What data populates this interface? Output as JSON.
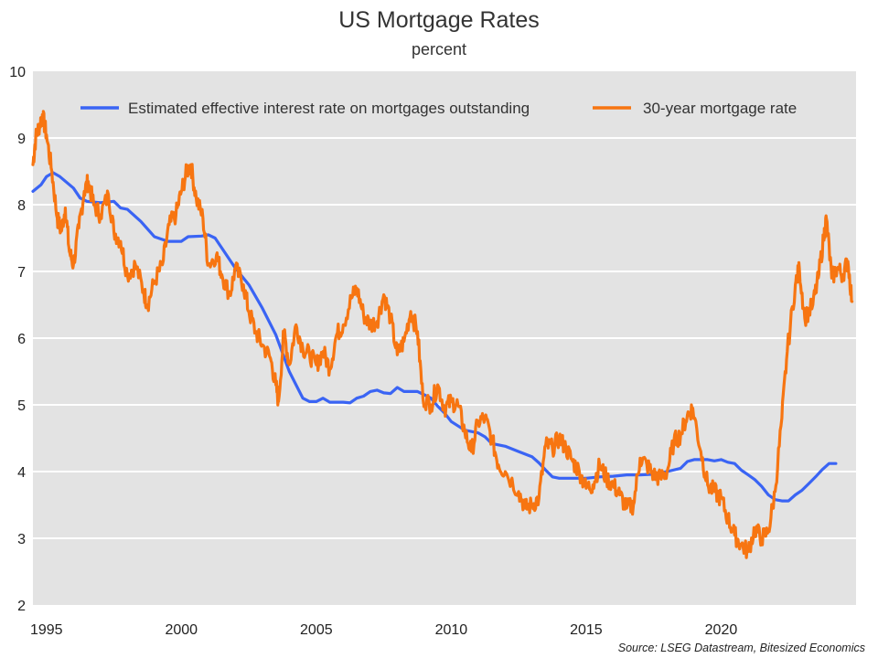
{
  "chart_data": {
    "type": "line",
    "title": "US Mortgage Rates",
    "subtitle": "percent",
    "source": "Source: LSEG Datastream, Bitesized Economics",
    "xlabel": "",
    "ylabel": "",
    "xlim": [
      1994.5,
      2025.0
    ],
    "ylim": [
      2,
      10
    ],
    "x_ticks": [
      1995,
      2000,
      2005,
      2010,
      2015,
      2020
    ],
    "y_ticks": [
      2,
      3,
      4,
      5,
      6,
      7,
      8,
      9,
      10
    ],
    "grid": "horizontal",
    "legend_position": "top",
    "colors": {
      "plot_background": "#e3e3e3",
      "gridline": "#ffffff",
      "effective_rate": "#3a64f4",
      "mortgage_30y": "#f77511"
    },
    "series": [
      {
        "name": "Estimated effective interest rate on mortgages outstanding",
        "color": "#3a64f4",
        "points": [
          [
            1994.5,
            8.2
          ],
          [
            1994.8,
            8.3
          ],
          [
            1995.0,
            8.42
          ],
          [
            1995.25,
            8.48
          ],
          [
            1995.5,
            8.42
          ],
          [
            1996.0,
            8.25
          ],
          [
            1996.25,
            8.1
          ],
          [
            1996.5,
            8.05
          ],
          [
            1997.0,
            8.03
          ],
          [
            1997.5,
            8.05
          ],
          [
            1997.75,
            7.95
          ],
          [
            1998.0,
            7.93
          ],
          [
            1998.5,
            7.75
          ],
          [
            1999.0,
            7.52
          ],
          [
            1999.5,
            7.45
          ],
          [
            2000.0,
            7.45
          ],
          [
            2000.25,
            7.52
          ],
          [
            2000.75,
            7.53
          ],
          [
            2001.0,
            7.55
          ],
          [
            2001.25,
            7.5
          ],
          [
            2001.5,
            7.35
          ],
          [
            2002.0,
            7.05
          ],
          [
            2002.5,
            6.8
          ],
          [
            2003.0,
            6.45
          ],
          [
            2003.5,
            6.05
          ],
          [
            2004.0,
            5.5
          ],
          [
            2004.25,
            5.3
          ],
          [
            2004.5,
            5.1
          ],
          [
            2004.75,
            5.05
          ],
          [
            2005.0,
            5.05
          ],
          [
            2005.25,
            5.1
          ],
          [
            2005.5,
            5.04
          ],
          [
            2006.0,
            5.04
          ],
          [
            2006.25,
            5.03
          ],
          [
            2006.5,
            5.1
          ],
          [
            2006.75,
            5.13
          ],
          [
            2007.0,
            5.2
          ],
          [
            2007.25,
            5.22
          ],
          [
            2007.5,
            5.18
          ],
          [
            2007.75,
            5.17
          ],
          [
            2008.0,
            5.26
          ],
          [
            2008.25,
            5.2
          ],
          [
            2008.75,
            5.2
          ],
          [
            2009.0,
            5.15
          ],
          [
            2009.25,
            5.1
          ],
          [
            2009.5,
            4.98
          ],
          [
            2009.75,
            4.88
          ],
          [
            2010.0,
            4.75
          ],
          [
            2010.5,
            4.62
          ],
          [
            2011.0,
            4.58
          ],
          [
            2011.25,
            4.52
          ],
          [
            2011.5,
            4.42
          ],
          [
            2012.0,
            4.38
          ],
          [
            2012.5,
            4.3
          ],
          [
            2013.0,
            4.22
          ],
          [
            2013.25,
            4.13
          ],
          [
            2013.5,
            4.02
          ],
          [
            2013.75,
            3.92
          ],
          [
            2014.0,
            3.9
          ],
          [
            2014.5,
            3.9
          ],
          [
            2015.0,
            3.9
          ],
          [
            2015.5,
            3.92
          ],
          [
            2016.0,
            3.93
          ],
          [
            2016.5,
            3.95
          ],
          [
            2017.0,
            3.95
          ],
          [
            2017.5,
            3.96
          ],
          [
            2018.0,
            4.0
          ],
          [
            2018.5,
            4.05
          ],
          [
            2018.75,
            4.15
          ],
          [
            2019.0,
            4.18
          ],
          [
            2019.5,
            4.18
          ],
          [
            2019.75,
            4.16
          ],
          [
            2020.0,
            4.18
          ],
          [
            2020.25,
            4.14
          ],
          [
            2020.5,
            4.12
          ],
          [
            2020.75,
            4.02
          ],
          [
            2021.0,
            3.95
          ],
          [
            2021.25,
            3.88
          ],
          [
            2021.5,
            3.78
          ],
          [
            2021.75,
            3.65
          ],
          [
            2022.0,
            3.58
          ],
          [
            2022.25,
            3.56
          ],
          [
            2022.5,
            3.56
          ],
          [
            2022.75,
            3.65
          ],
          [
            2023.0,
            3.72
          ],
          [
            2023.25,
            3.82
          ],
          [
            2023.5,
            3.92
          ],
          [
            2023.75,
            4.03
          ],
          [
            2024.0,
            4.12
          ],
          [
            2024.25,
            4.12
          ]
        ]
      },
      {
        "name": "30-year mortgage rate",
        "color": "#f77511",
        "points": [
          [
            1994.5,
            8.6
          ],
          [
            1994.6,
            9.0
          ],
          [
            1994.75,
            9.2
          ],
          [
            1994.85,
            9.35
          ],
          [
            1995.0,
            9.05
          ],
          [
            1995.2,
            8.5
          ],
          [
            1995.4,
            7.8
          ],
          [
            1995.55,
            7.6
          ],
          [
            1995.7,
            7.95
          ],
          [
            1995.85,
            7.3
          ],
          [
            1996.0,
            7.1
          ],
          [
            1996.2,
            7.65
          ],
          [
            1996.4,
            8.2
          ],
          [
            1996.55,
            8.35
          ],
          [
            1996.75,
            8.0
          ],
          [
            1997.0,
            7.85
          ],
          [
            1997.3,
            8.15
          ],
          [
            1997.5,
            7.6
          ],
          [
            1997.75,
            7.45
          ],
          [
            1998.0,
            6.95
          ],
          [
            1998.3,
            7.1
          ],
          [
            1998.6,
            6.7
          ],
          [
            1998.75,
            6.5
          ],
          [
            1999.0,
            6.85
          ],
          [
            1999.3,
            7.1
          ],
          [
            1999.55,
            7.7
          ],
          [
            1999.8,
            7.85
          ],
          [
            2000.0,
            8.2
          ],
          [
            2000.2,
            8.5
          ],
          [
            2000.35,
            8.6
          ],
          [
            2000.55,
            8.1
          ],
          [
            2000.8,
            7.8
          ],
          [
            2001.0,
            7.1
          ],
          [
            2001.3,
            7.25
          ],
          [
            2001.5,
            6.95
          ],
          [
            2001.8,
            6.65
          ],
          [
            2002.0,
            7.05
          ],
          [
            2002.3,
            6.8
          ],
          [
            2002.5,
            6.4
          ],
          [
            2002.75,
            6.1
          ],
          [
            2003.0,
            5.9
          ],
          [
            2003.3,
            5.7
          ],
          [
            2003.5,
            5.3
          ],
          [
            2003.6,
            5.05
          ],
          [
            2003.8,
            6.1
          ],
          [
            2004.0,
            5.6
          ],
          [
            2004.25,
            6.2
          ],
          [
            2004.5,
            5.85
          ],
          [
            2004.75,
            5.75
          ],
          [
            2005.0,
            5.6
          ],
          [
            2005.25,
            5.8
          ],
          [
            2005.5,
            5.55
          ],
          [
            2005.75,
            6.05
          ],
          [
            2006.0,
            6.2
          ],
          [
            2006.3,
            6.6
          ],
          [
            2006.5,
            6.75
          ],
          [
            2006.75,
            6.35
          ],
          [
            2007.0,
            6.2
          ],
          [
            2007.25,
            6.25
          ],
          [
            2007.5,
            6.65
          ],
          [
            2007.75,
            6.3
          ],
          [
            2008.0,
            5.75
          ],
          [
            2008.25,
            5.95
          ],
          [
            2008.5,
            6.4
          ],
          [
            2008.75,
            6.1
          ],
          [
            2008.95,
            5.1
          ],
          [
            2009.25,
            5.0
          ],
          [
            2009.5,
            5.3
          ],
          [
            2009.75,
            4.95
          ],
          [
            2010.0,
            5.05
          ],
          [
            2010.25,
            5.0
          ],
          [
            2010.5,
            4.6
          ],
          [
            2010.75,
            4.3
          ],
          [
            2011.0,
            4.75
          ],
          [
            2011.25,
            4.8
          ],
          [
            2011.5,
            4.5
          ],
          [
            2011.75,
            4.1
          ],
          [
            2012.0,
            4.0
          ],
          [
            2012.5,
            3.7
          ],
          [
            2012.75,
            3.45
          ],
          [
            2013.0,
            3.5
          ],
          [
            2013.25,
            3.6
          ],
          [
            2013.5,
            4.4
          ],
          [
            2013.75,
            4.35
          ],
          [
            2014.0,
            4.5
          ],
          [
            2014.25,
            4.35
          ],
          [
            2014.5,
            4.15
          ],
          [
            2014.75,
            4.0
          ],
          [
            2015.0,
            3.75
          ],
          [
            2015.25,
            3.8
          ],
          [
            2015.5,
            4.1
          ],
          [
            2015.75,
            3.9
          ],
          [
            2016.0,
            3.8
          ],
          [
            2016.25,
            3.65
          ],
          [
            2016.5,
            3.45
          ],
          [
            2016.75,
            3.5
          ],
          [
            2017.0,
            4.2
          ],
          [
            2017.25,
            4.1
          ],
          [
            2017.5,
            3.95
          ],
          [
            2017.75,
            3.9
          ],
          [
            2018.0,
            4.0
          ],
          [
            2018.25,
            4.45
          ],
          [
            2018.5,
            4.55
          ],
          [
            2018.75,
            4.85
          ],
          [
            2018.95,
            4.95
          ],
          [
            2019.25,
            4.3
          ],
          [
            2019.5,
            3.8
          ],
          [
            2019.75,
            3.7
          ],
          [
            2020.0,
            3.6
          ],
          [
            2020.25,
            3.3
          ],
          [
            2020.5,
            3.05
          ],
          [
            2020.75,
            2.9
          ],
          [
            2021.0,
            2.8
          ],
          [
            2021.25,
            3.15
          ],
          [
            2021.5,
            3.0
          ],
          [
            2021.75,
            3.1
          ],
          [
            2022.0,
            3.7
          ],
          [
            2022.25,
            4.8
          ],
          [
            2022.45,
            5.8
          ],
          [
            2022.75,
            6.8
          ],
          [
            2022.9,
            7.05
          ],
          [
            2023.1,
            6.3
          ],
          [
            2023.4,
            6.5
          ],
          [
            2023.6,
            6.9
          ],
          [
            2023.8,
            7.5
          ],
          [
            2023.9,
            7.8
          ],
          [
            2024.1,
            6.9
          ],
          [
            2024.3,
            7.05
          ],
          [
            2024.5,
            6.95
          ],
          [
            2024.7,
            7.15
          ],
          [
            2024.85,
            6.55
          ]
        ]
      }
    ]
  }
}
